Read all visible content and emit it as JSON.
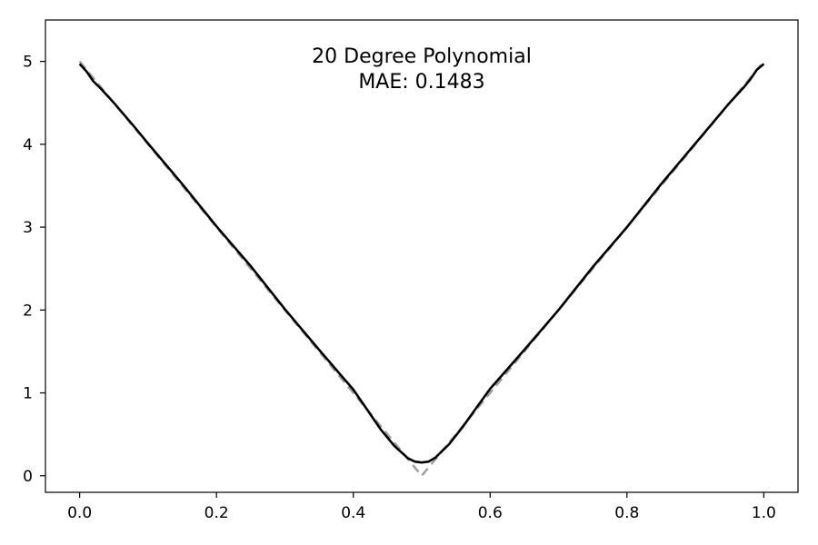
{
  "chart_data": {
    "type": "line",
    "title": "20 Degree Polynomial",
    "subtitle": "MAE: 0.1483",
    "xlabel": "",
    "ylabel": "",
    "xlim": [
      -0.05,
      1.05
    ],
    "ylim": [
      -0.2,
      5.5
    ],
    "xticks": [
      0.0,
      0.2,
      0.4,
      0.6,
      0.8,
      1.0
    ],
    "xtick_labels": [
      "0.0",
      "0.2",
      "0.4",
      "0.6",
      "0.8",
      "1.0"
    ],
    "yticks": [
      0,
      1,
      2,
      3,
      4,
      5
    ],
    "ytick_labels": [
      "0",
      "1",
      "2",
      "3",
      "4",
      "5"
    ],
    "grid": false,
    "series": [
      {
        "style": "dashed",
        "color": "#a0a0a0",
        "x": [
          0.0,
          0.5,
          1.0
        ],
        "y": [
          5.0,
          0.0,
          5.0
        ]
      },
      {
        "style": "solid",
        "color": "#000000",
        "x": [
          0.0,
          0.01,
          0.02,
          0.03,
          0.05,
          0.08,
          0.1,
          0.15,
          0.2,
          0.25,
          0.3,
          0.35,
          0.4,
          0.42,
          0.44,
          0.46,
          0.48,
          0.49,
          0.5,
          0.51,
          0.52,
          0.54,
          0.56,
          0.58,
          0.6,
          0.65,
          0.7,
          0.75,
          0.8,
          0.85,
          0.9,
          0.95,
          0.97,
          0.98,
          0.99,
          1.0
        ],
        "y": [
          4.97,
          4.88,
          4.76,
          4.68,
          4.5,
          4.21,
          4.01,
          3.52,
          3.01,
          2.53,
          2.01,
          1.52,
          1.04,
          0.8,
          0.56,
          0.36,
          0.21,
          0.17,
          0.16,
          0.17,
          0.22,
          0.38,
          0.59,
          0.82,
          1.05,
          1.52,
          2.0,
          2.52,
          3.0,
          3.52,
          4.01,
          4.5,
          4.68,
          4.78,
          4.9,
          4.97
        ]
      }
    ]
  }
}
